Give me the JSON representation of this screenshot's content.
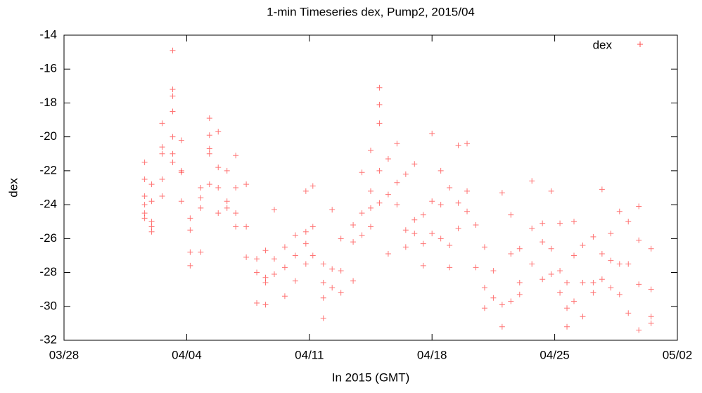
{
  "chart_data": {
    "type": "scatter",
    "title": "1-min Timeseries dex, Pump2, 2015/04",
    "x_label": "In 2015 (GMT)",
    "y_label": "dex",
    "legend_position": "top-right",
    "xlim": [
      0,
      35
    ],
    "xticks": [
      {
        "value": 0,
        "label": "03/28"
      },
      {
        "value": 7,
        "label": "04/04"
      },
      {
        "value": 14,
        "label": "04/11"
      },
      {
        "value": 21,
        "label": "04/18"
      },
      {
        "value": 28,
        "label": "04/25"
      },
      {
        "value": 35,
        "label": "05/02"
      }
    ],
    "ylim": [
      -32,
      -14
    ],
    "yticks": [
      -32,
      -30,
      -28,
      -26,
      -24,
      -22,
      -20,
      -18,
      -16,
      -14
    ],
    "x": [
      4.6,
      4.6,
      4.6,
      4.6,
      4.6,
      4.6,
      5.0,
      5.0,
      5.0,
      5.0,
      5.0,
      5.6,
      5.6,
      5.6,
      5.6,
      5.6,
      6.2,
      6.2,
      6.2,
      6.2,
      6.2,
      6.2,
      6.2,
      6.7,
      6.7,
      6.7,
      6.7,
      7.2,
      7.2,
      7.2,
      7.2,
      7.8,
      7.8,
      7.8,
      7.8,
      8.3,
      8.3,
      8.3,
      8.3,
      8.3,
      8.8,
      8.8,
      8.8,
      8.8,
      9.3,
      9.3,
      9.3,
      9.8,
      9.8,
      9.8,
      9.8,
      10.4,
      10.4,
      10.4,
      11.0,
      11.0,
      11.0,
      11.5,
      11.5,
      11.5,
      11.5,
      12.0,
      12.0,
      12.0,
      12.6,
      12.6,
      12.6,
      13.2,
      13.2,
      13.2,
      13.8,
      13.8,
      13.8,
      13.8,
      14.2,
      14.2,
      14.2,
      14.8,
      14.8,
      14.8,
      14.8,
      15.3,
      15.3,
      15.3,
      15.8,
      15.8,
      15.8,
      16.5,
      16.5,
      16.5,
      17.0,
      17.0,
      17.0,
      17.5,
      17.5,
      17.5,
      17.5,
      18.0,
      18.0,
      18.0,
      18.0,
      18.0,
      18.5,
      18.5,
      18.5,
      19.0,
      19.0,
      19.0,
      19.5,
      19.5,
      19.5,
      20.0,
      20.0,
      20.0,
      20.5,
      20.5,
      20.5,
      21.0,
      21.0,
      21.0,
      21.5,
      21.5,
      21.5,
      22.0,
      22.0,
      22.0,
      22.5,
      22.5,
      22.5,
      23.0,
      23.0,
      23.0,
      23.5,
      23.5,
      24.0,
      24.0,
      24.0,
      24.5,
      24.5,
      25.0,
      25.0,
      25.0,
      25.5,
      25.5,
      25.5,
      26.0,
      26.0,
      26.0,
      26.7,
      26.7,
      26.7,
      27.3,
      27.3,
      27.3,
      27.8,
      27.8,
      27.8,
      28.3,
      28.3,
      28.3,
      28.7,
      28.7,
      28.7,
      29.1,
      29.1,
      29.1,
      29.6,
      29.6,
      29.6,
      30.2,
      30.2,
      30.2,
      30.7,
      30.7,
      30.7,
      31.2,
      31.2,
      31.2,
      31.7,
      31.7,
      31.7,
      32.2,
      32.2,
      32.2,
      32.8,
      32.8,
      32.8,
      32.8,
      33.5,
      33.5,
      33.5,
      33.5
    ],
    "series": [
      {
        "name": "dex",
        "color": "#ff0000",
        "values": [
          -21.5,
          -22.5,
          -23.5,
          -24,
          -24.5,
          -24.8,
          -25,
          -25.3,
          -25.6,
          -22.8,
          -23.8,
          -19.2,
          -20.6,
          -21,
          -22.5,
          -23.5,
          -14.9,
          -17.2,
          -17.6,
          -18.5,
          -20,
          -21,
          -21.5,
          -20.2,
          -22,
          -22.1,
          -23.8,
          -24.8,
          -25.5,
          -26.8,
          -27.6,
          -23,
          -23.6,
          -24.2,
          -26.8,
          -18.9,
          -19.9,
          -20.7,
          -21,
          -22.8,
          -19.7,
          -21.8,
          -23,
          -24.5,
          -22,
          -23.8,
          -24.2,
          -21.1,
          -23,
          -24.5,
          -25.3,
          -22.8,
          -25.3,
          -27.1,
          -27.2,
          -28,
          -29.8,
          -26.7,
          -28.3,
          -28.6,
          -29.9,
          -24.3,
          -27.2,
          -28.1,
          -26.5,
          -27.7,
          -29.4,
          -25.8,
          -27,
          -28.5,
          -23.2,
          -25.6,
          -26.3,
          -27.5,
          -22.9,
          -25.3,
          -27,
          -28.6,
          -29.5,
          -30.7,
          -27.5,
          -24.3,
          -27.8,
          -28.9,
          -26,
          -27.9,
          -29.2,
          -25.2,
          -26.2,
          -28.5,
          -22.1,
          -24.5,
          -25.8,
          -20.8,
          -23.2,
          -24.2,
          -25.3,
          -17.1,
          -18.1,
          -19.2,
          -22,
          -23.9,
          -21.3,
          -23.4,
          -26.9,
          -20.4,
          -22.7,
          -24,
          -22.2,
          -25.5,
          -26.5,
          -21.6,
          -24.9,
          -25.7,
          -24.6,
          -26.3,
          -27.6,
          -19.8,
          -23.8,
          -25.7,
          -22,
          -24,
          -26,
          -23,
          -26.4,
          -27.7,
          -20.5,
          -23.9,
          -25.4,
          -20.4,
          -23.2,
          -24.4,
          -25.2,
          -27.7,
          -26.5,
          -28.9,
          -30.1,
          -27.9,
          -29.5,
          -23.3,
          -29.9,
          -31.2,
          -24.6,
          -26.9,
          -29.7,
          -26.6,
          -28.6,
          -29.3,
          -22.6,
          -25.4,
          -27.5,
          -25.1,
          -26.2,
          -28.4,
          -23.2,
          -26.6,
          -28.1,
          -25.1,
          -27.9,
          -29.2,
          -28.6,
          -30.1,
          -31.2,
          -25,
          -27,
          -29.7,
          -26.4,
          -28.6,
          -30.6,
          -25.9,
          -28.6,
          -29.2,
          -23.1,
          -26.9,
          -28.4,
          -25.7,
          -27.3,
          -28.9,
          -24.4,
          -27.5,
          -29.3,
          -25,
          -27.5,
          -30.4,
          -24.1,
          -26.1,
          -28.7,
          -31.4,
          -26.6,
          -29,
          -30.6,
          -31
        ]
      }
    ]
  }
}
